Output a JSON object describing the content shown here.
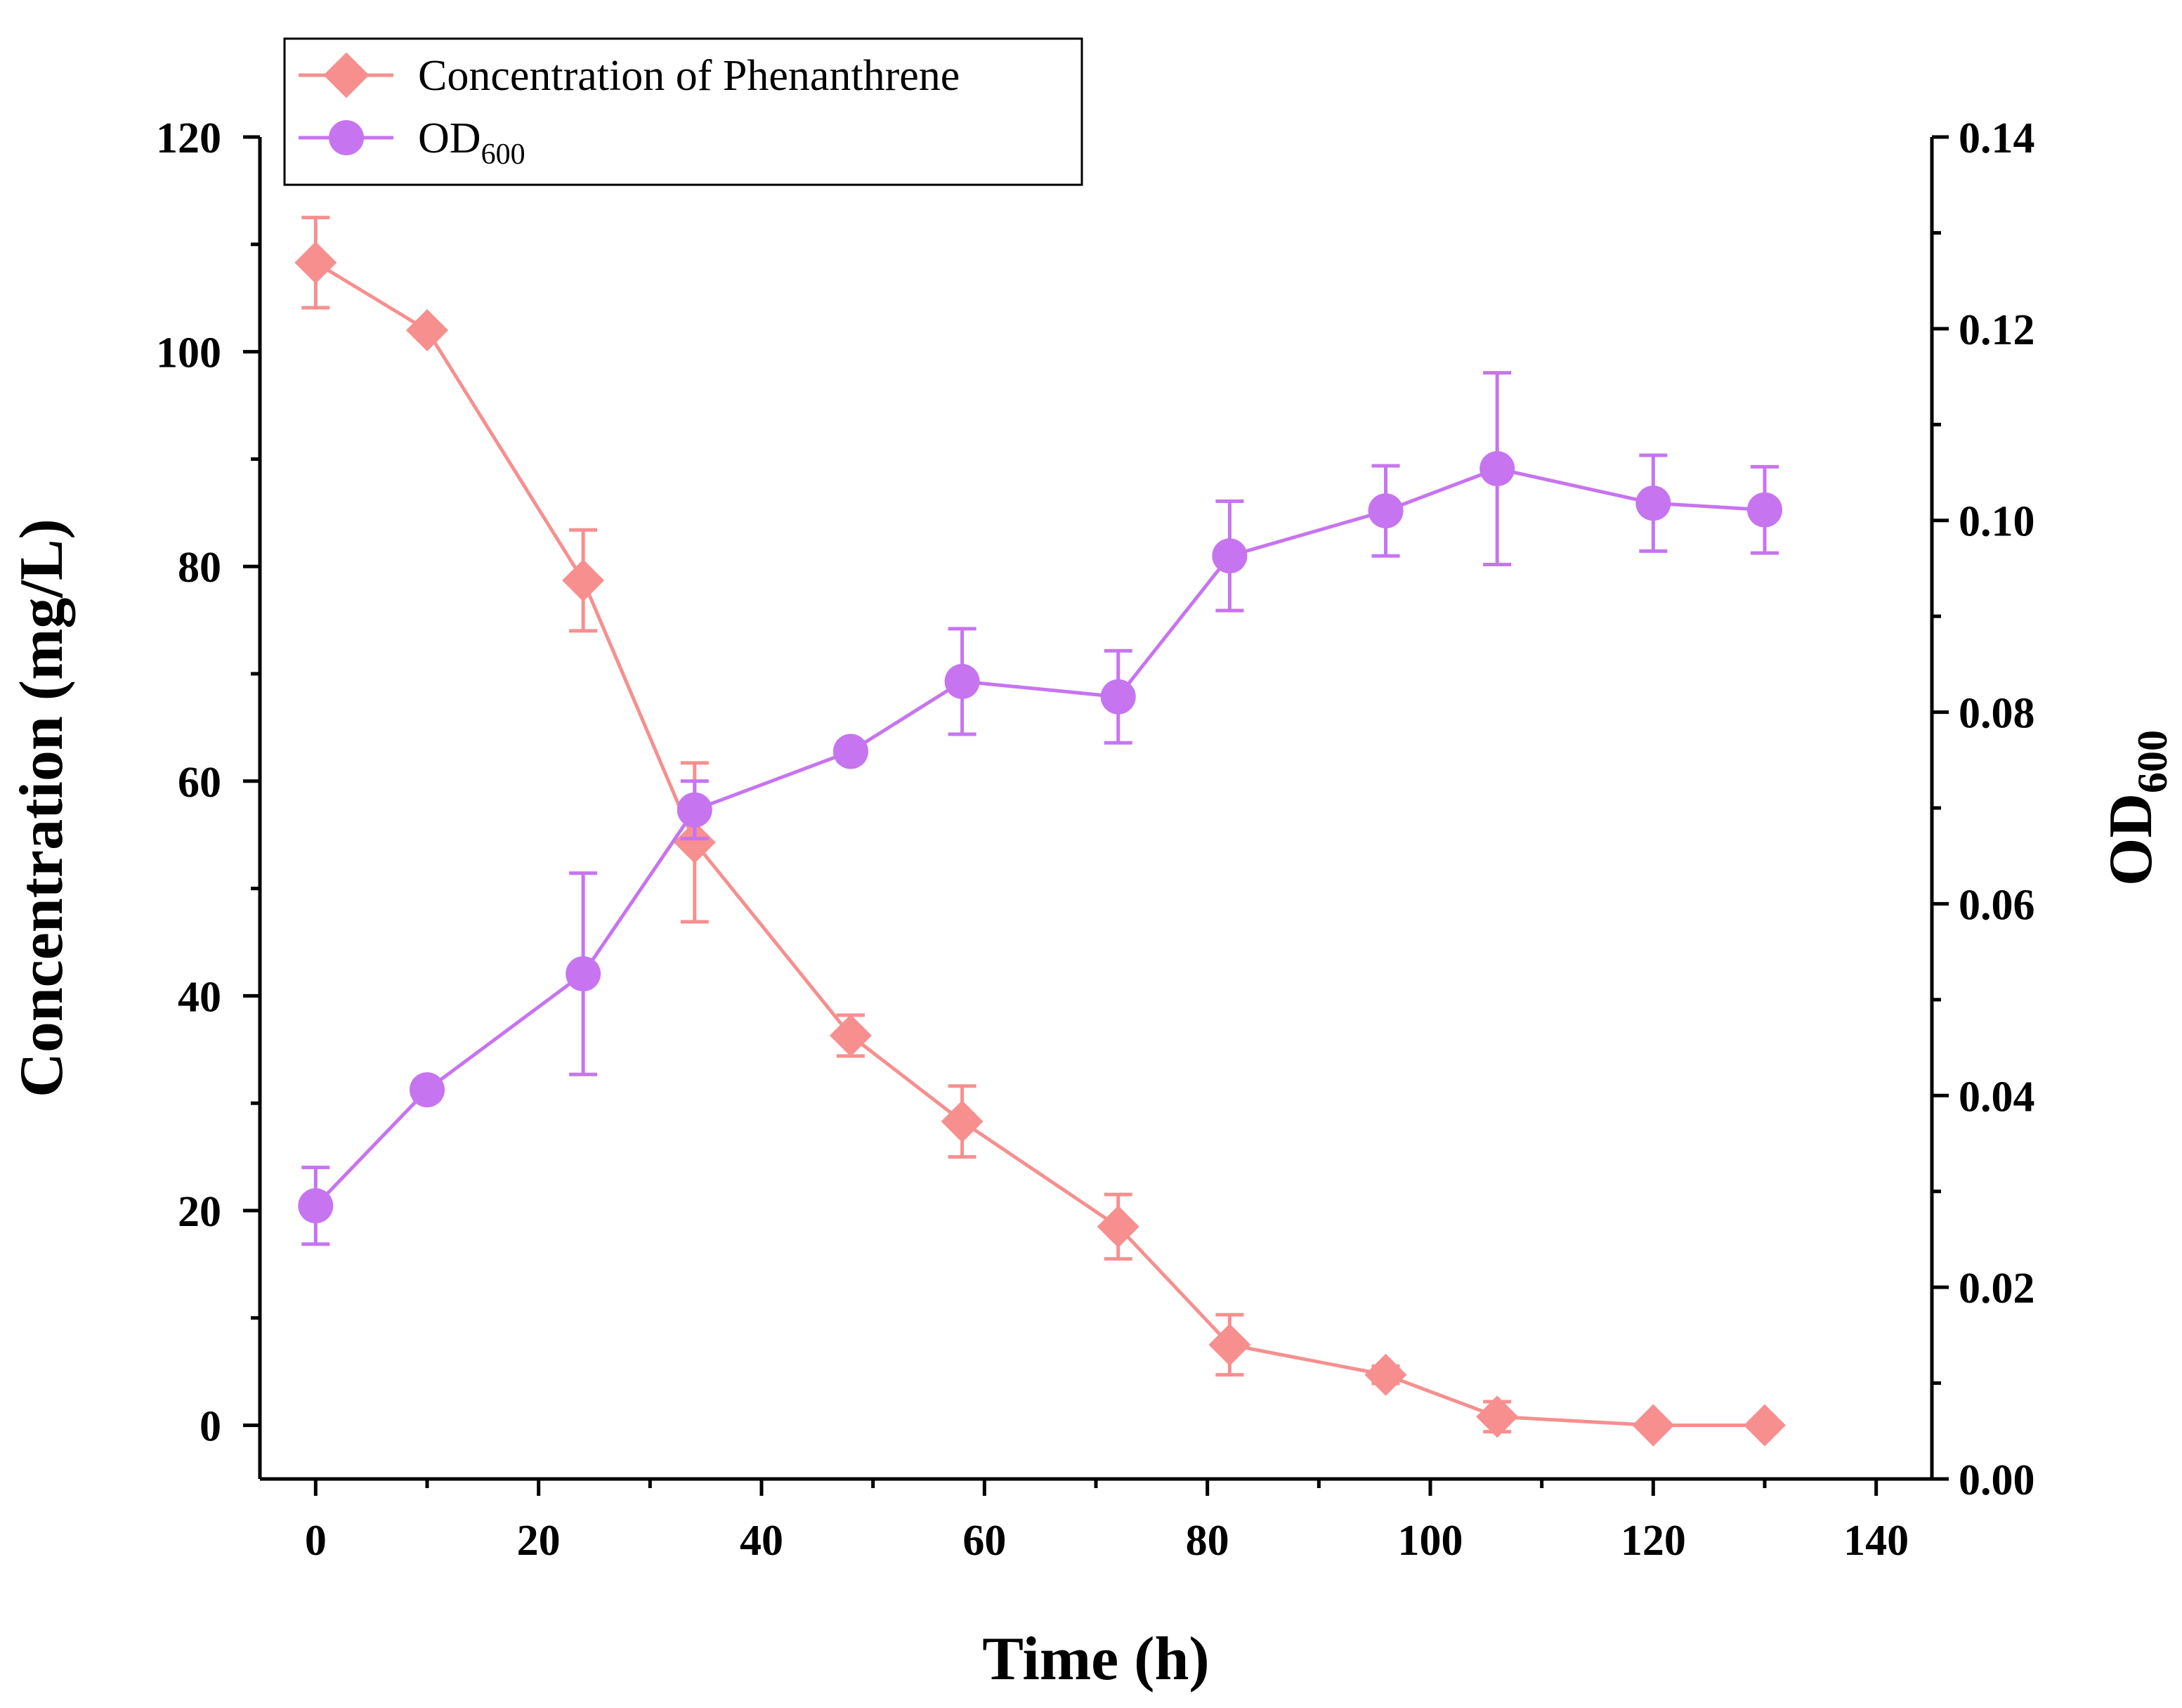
{
  "chart_data": {
    "type": "line",
    "title": "",
    "xlabel": "Time (h)",
    "ylabel_left": "Concentration (mg/L)",
    "ylabel_right": {
      "base": "OD",
      "sub": "600"
    },
    "xlim": [
      -5,
      145
    ],
    "ylim_left": [
      -5,
      120
    ],
    "ylim_right": [
      0,
      0.14
    ],
    "x_ticks": [
      0,
      20,
      40,
      60,
      80,
      100,
      120,
      140
    ],
    "x_tick_labels": [
      "0",
      "20",
      "40",
      "60",
      "80",
      "100",
      "120",
      "140"
    ],
    "y_left_ticks": [
      0,
      20,
      40,
      60,
      80,
      100,
      120
    ],
    "y_left_tick_labels": [
      "0",
      "20",
      "40",
      "60",
      "80",
      "100",
      "120"
    ],
    "y_right_ticks": [
      0,
      0.02,
      0.04,
      0.06,
      0.08,
      0.1,
      0.12,
      0.14
    ],
    "y_right_tick_labels": [
      "0.00",
      "0.02",
      "0.04",
      "0.06",
      "0.08",
      "0.10",
      "0.12",
      "0.14"
    ],
    "grid": false,
    "legend_position": "top-left",
    "series": [
      {
        "name": "Concentration of Phenanthrene",
        "axis": "left",
        "marker": "diamond",
        "color": "#f78f8f",
        "x": [
          0,
          10,
          24,
          34,
          48,
          58,
          72,
          82,
          96,
          106,
          120,
          130
        ],
        "y": [
          108.3,
          102.0,
          78.7,
          54.3,
          36.3,
          28.3,
          18.5,
          7.5,
          4.7,
          0.8,
          0.0,
          0.0
        ],
        "err": [
          4.2,
          0.5,
          4.7,
          7.4,
          1.9,
          3.3,
          3.0,
          2.8,
          0.8,
          1.4,
          0.0,
          0.0
        ]
      },
      {
        "name": "OD600",
        "name_parts": {
          "base": "OD",
          "sub": "600"
        },
        "axis": "right",
        "marker": "circle",
        "color": "#c774f0",
        "x": [
          0,
          10,
          24,
          34,
          48,
          58,
          72,
          82,
          96,
          106,
          120,
          130
        ],
        "y": [
          0.0285,
          0.0406,
          0.0527,
          0.0698,
          0.0759,
          0.0832,
          0.0816,
          0.0963,
          0.101,
          0.1054,
          0.1018,
          0.1011
        ],
        "err": [
          0.004,
          0.001,
          0.0105,
          0.003,
          0.001,
          0.0055,
          0.0048,
          0.0057,
          0.0047,
          0.01,
          0.005,
          0.0045
        ]
      }
    ]
  }
}
